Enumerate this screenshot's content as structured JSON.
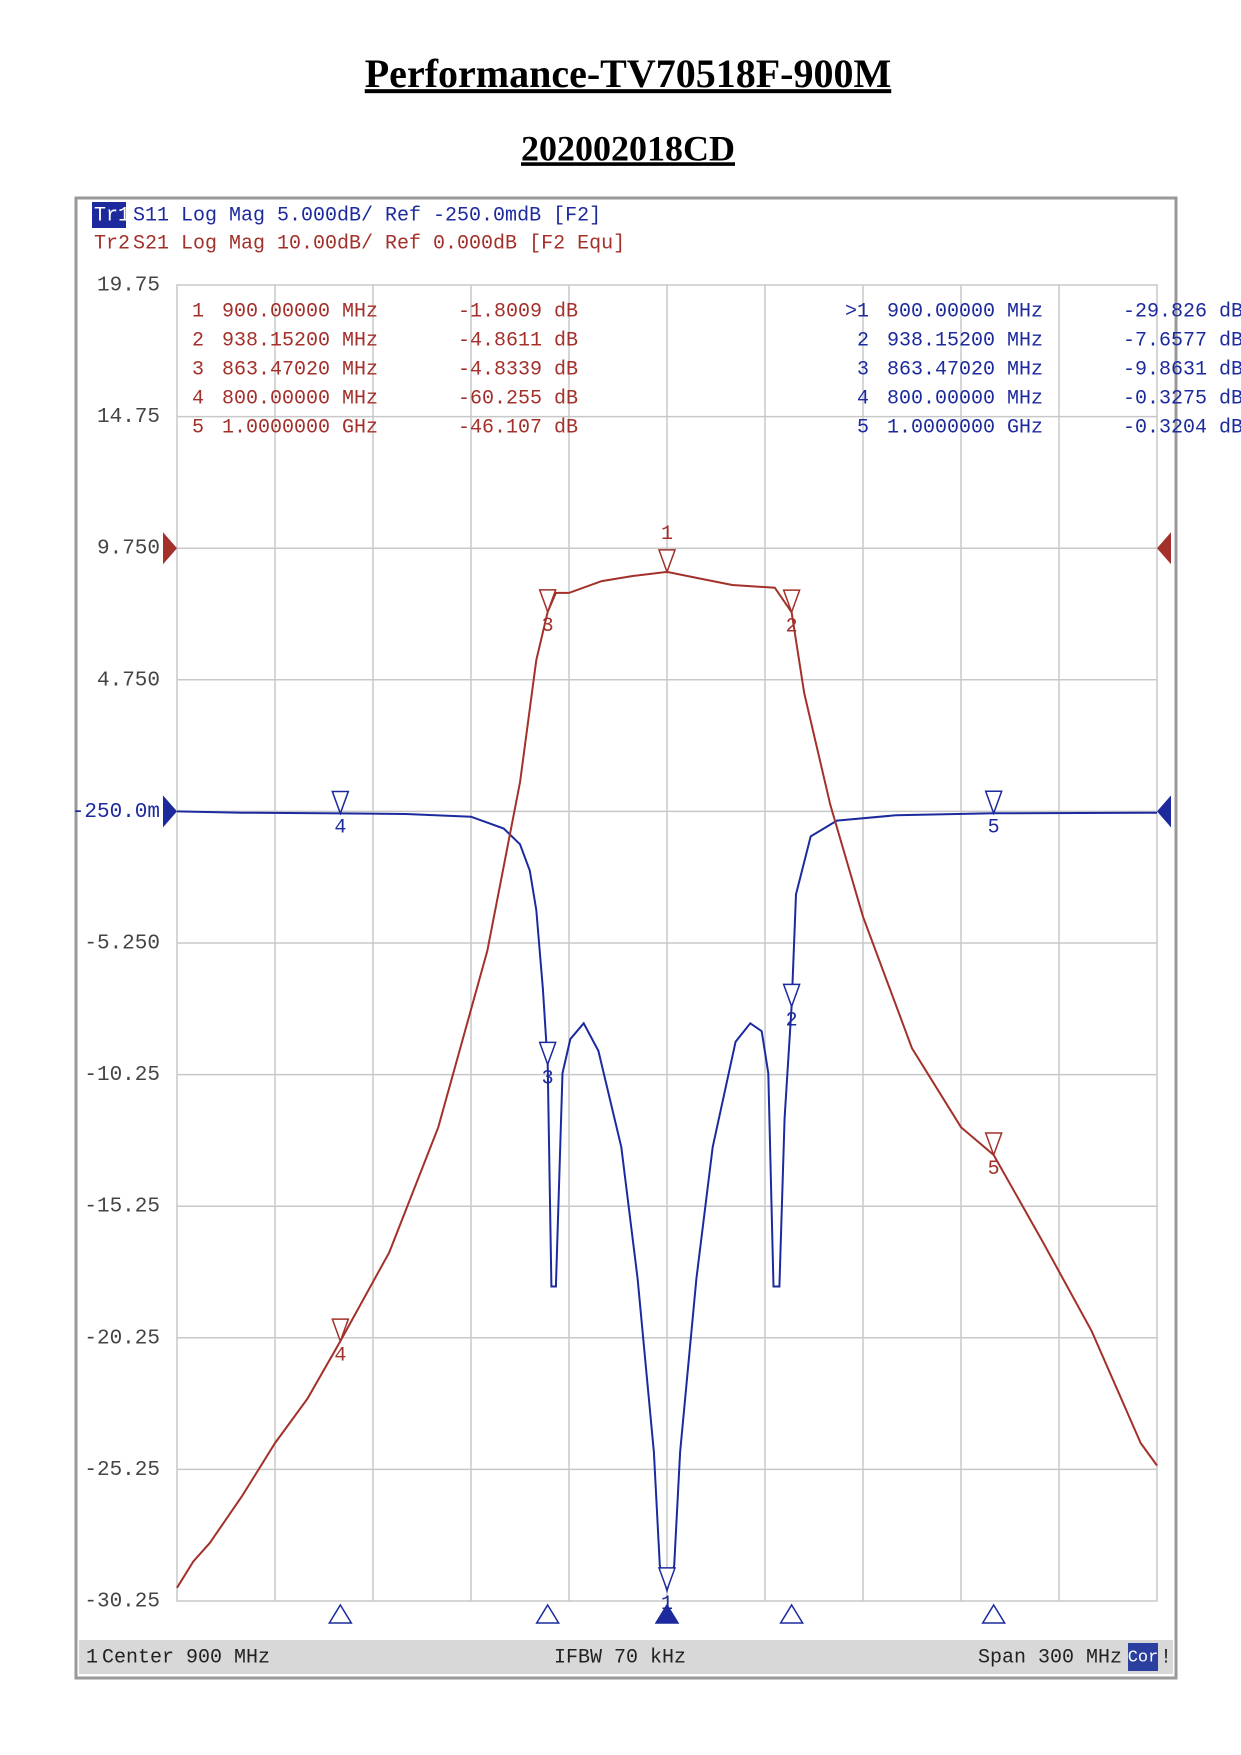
{
  "chart_data": {
    "type": "line",
    "title": "Performance-TV70518F-900M",
    "subtitle": "202002018CD",
    "xlim": [
      750,
      1050
    ],
    "xticks": [
      750,
      780,
      810,
      840,
      870,
      900,
      930,
      960,
      990,
      1020,
      1050
    ],
    "ylim": [
      -30.25,
      19.75
    ],
    "yticks": [
      19.75,
      14.75,
      {
        "value": 9.75,
        "label": "9.750"
      },
      {
        "value": 4.75,
        "label": "4.750"
      },
      {
        "value": -0.25,
        "label": "-250.0m"
      },
      {
        "value": -5.25,
        "label": "-5.250"
      },
      -10.25,
      -15.25,
      -20.25,
      -25.25,
      -30.25
    ],
    "y2lim": [
      -80,
      20
    ],
    "grid": true,
    "series": [
      {
        "trace": "Tr1",
        "name": "S11 Log Mag 5.000dB/ Ref -250.0mdB [F2]",
        "color": "#1c2a9e",
        "x": [
          750,
          770,
          800,
          820,
          840,
          850,
          855,
          858,
          860,
          862,
          863.4702,
          864.6,
          866,
          868,
          870.4,
          874.5,
          879,
          886,
          891,
          896,
          897.8,
          900,
          902.2,
          904,
          909,
          914,
          921,
          925.5,
          929,
          931,
          932.6,
          934.4,
          936,
          938.152,
          939.5,
          944,
          952,
          970,
          1000,
          1050
        ],
        "values": [
          -0.25,
          -0.3,
          -0.3275,
          -0.35,
          -0.45,
          -0.9,
          -1.5,
          -2.5,
          -4,
          -7,
          -9.8631,
          -18.3,
          -18.3,
          -10.2,
          -8.9,
          -8.3,
          -9.35,
          -13,
          -18,
          -24.6,
          -28.9,
          -29.826,
          -28.9,
          -24.6,
          -18,
          -13,
          -9,
          -8.3,
          -8.6,
          -10.2,
          -18.3,
          -18.3,
          -11.9,
          -7.6577,
          -3.4,
          -1.2,
          -0.6,
          -0.4,
          -0.3204,
          -0.3
        ],
        "markers": [
          {
            "label": ">1",
            "name": "1",
            "x": 900,
            "x_label": "900.00000 MHz",
            "value": -29.826,
            "value_label": "-29.826 dB"
          },
          {
            "label": "2",
            "name": "2",
            "x": 938.152,
            "x_label": "938.15200 MHz",
            "value": -7.6577,
            "value_label": "-7.6577 dB"
          },
          {
            "label": "3",
            "name": "3",
            "x": 863.4702,
            "x_label": "863.47020 MHz",
            "value": -9.8631,
            "value_label": "-9.8631 dB"
          },
          {
            "label": "4",
            "name": "4",
            "x": 800,
            "x_label": "800.00000 MHz",
            "value": -0.3275,
            "value_label": "-0.3275 dB"
          },
          {
            "label": "5",
            "name": "5",
            "x": 1000,
            "x_label": "1.0000000 GHz",
            "value": -0.3204,
            "value_label": "-0.3204 dB"
          }
        ]
      },
      {
        "trace": "Tr2",
        "name": "S21 Log Mag 10.00dB/ Ref 0.000dB [F2 Equ]",
        "color": "#a3302a",
        "axis": "y2",
        "x": [
          750,
          755,
          760,
          770,
          780,
          790,
          800,
          815,
          830,
          845,
          855,
          860,
          863.4702,
          866,
          870,
          880,
          890,
          900,
          910,
          920,
          933,
          938.152,
          942,
          950,
          960,
          975,
          990,
          1000,
          1015,
          1030,
          1045,
          1050
        ],
        "values": [
          -79,
          -77,
          -75.6,
          -72,
          -68,
          -64.6,
          -60.255,
          -53.5,
          -44,
          -30.6,
          -17.8,
          -8.5,
          -4.8339,
          -3.4,
          -3.4,
          -2.5,
          -2.1,
          -1.8009,
          -2.3,
          -2.8,
          -3.0,
          -4.8611,
          -11,
          -19.5,
          -28,
          -38,
          -44,
          -46.107,
          -52.7,
          -59.5,
          -68,
          -69.7
        ],
        "markers": [
          {
            "label": "1",
            "name": "1",
            "x": 900,
            "x_label": "900.00000 MHz",
            "value": -1.8009,
            "value_label": "-1.8009 dB"
          },
          {
            "label": "2",
            "name": "2",
            "x": 938.152,
            "x_label": "938.15200 MHz",
            "value": -4.8611,
            "value_label": "-4.8611 dB"
          },
          {
            "label": "3",
            "name": "3",
            "x": 863.4702,
            "x_label": "863.47020 MHz",
            "value": -4.8339,
            "value_label": "-4.8339 dB"
          },
          {
            "label": "4",
            "name": "4",
            "x": 800,
            "x_label": "800.00000 MHz",
            "value": -60.255,
            "value_label": "-60.255 dB"
          },
          {
            "label": "5",
            "name": "5",
            "x": 1000,
            "x_label": "1.0000000 GHz",
            "value": -46.107,
            "value_label": "-46.107 dB"
          }
        ]
      }
    ],
    "footer": {
      "channel": "1",
      "center": "Center 900 MHz",
      "ifbw": "IFBW 70 kHz",
      "span": "Span 300 MHz",
      "correction": "Cor",
      "flag": "!"
    }
  }
}
